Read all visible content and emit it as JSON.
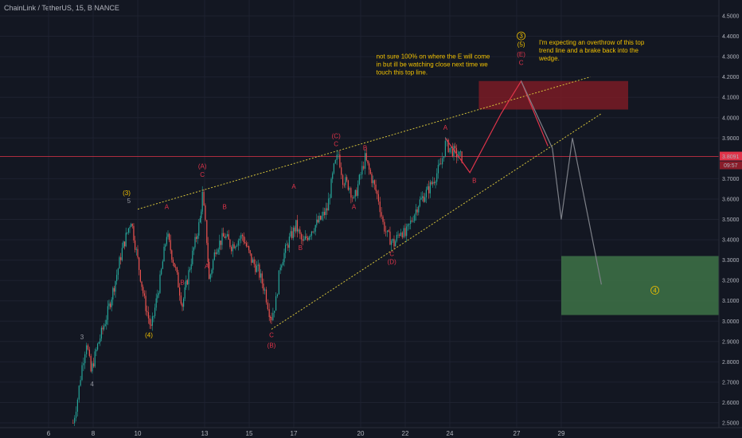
{
  "symbol_title": "ChainLink / TetherUS, 15, BINANCE",
  "colors": {
    "background": "#131722",
    "up": "#26a69a",
    "down": "#ef5350",
    "wave_red": "#e0344a",
    "wave_yellow": "#f0c000",
    "wave_gray": "#9598a1",
    "projection_red": "#e0344a",
    "projection_gray": "#7d8088",
    "resistance_box": "#7a1b24",
    "target_box": "#3c6e45",
    "price_line": "#e0344a"
  },
  "chart_data": {
    "type": "candlestick",
    "ylim": [
      2.5,
      4.5
    ],
    "y_ticks": [
      "4.5000",
      "4.4000",
      "4.3000",
      "4.2000",
      "4.1000",
      "4.0000",
      "3.9000",
      "3.7000",
      "3.6000",
      "3.5000",
      "3.4000",
      "3.3000",
      "3.2000",
      "3.1000",
      "3.0000",
      "2.9000",
      "2.8000",
      "2.7000",
      "2.6000",
      "2.5000"
    ],
    "x_ticks": [
      {
        "label": "6",
        "day": 6
      },
      {
        "label": "8",
        "day": 8
      },
      {
        "label": "10",
        "day": 10
      },
      {
        "label": "13",
        "day": 13
      },
      {
        "label": "15",
        "day": 15
      },
      {
        "label": "17",
        "day": 17
      },
      {
        "label": "20",
        "day": 20
      },
      {
        "label": "22",
        "day": 22
      },
      {
        "label": "24",
        "day": 24
      },
      {
        "label": "27",
        "day": 27
      },
      {
        "label": "29",
        "day": 29
      }
    ],
    "last_price": {
      "value": 3.8091,
      "label": "3.8091",
      "countdown": "09:57"
    },
    "price_path": [
      [
        7.1,
        2.5
      ],
      [
        7.3,
        2.62
      ],
      [
        7.5,
        2.78
      ],
      [
        7.7,
        2.9
      ],
      [
        7.9,
        2.75
      ],
      [
        8.2,
        2.88
      ],
      [
        8.6,
        3.02
      ],
      [
        9.0,
        3.2
      ],
      [
        9.3,
        3.35
      ],
      [
        9.7,
        3.5
      ],
      [
        10.0,
        3.3
      ],
      [
        10.3,
        3.1
      ],
      [
        10.6,
        2.96
      ],
      [
        11.0,
        3.2
      ],
      [
        11.3,
        3.43
      ],
      [
        11.7,
        3.25
      ],
      [
        12.0,
        3.08
      ],
      [
        12.4,
        3.3
      ],
      [
        12.8,
        3.5
      ],
      [
        12.9,
        3.62
      ],
      [
        13.1,
        3.4
      ],
      [
        13.2,
        3.2
      ],
      [
        13.5,
        3.36
      ],
      [
        13.9,
        3.42
      ],
      [
        14.2,
        3.37
      ],
      [
        14.7,
        3.42
      ],
      [
        15.1,
        3.3
      ],
      [
        15.4,
        3.25
      ],
      [
        15.7,
        3.15
      ],
      [
        15.9,
        3.05
      ],
      [
        16.0,
        3.02
      ],
      [
        16.2,
        3.1
      ],
      [
        16.4,
        3.28
      ],
      [
        16.8,
        3.4
      ],
      [
        17.1,
        3.47
      ],
      [
        17.4,
        3.38
      ],
      [
        17.8,
        3.45
      ],
      [
        18.2,
        3.5
      ],
      [
        18.5,
        3.55
      ],
      [
        18.8,
        3.75
      ],
      [
        19.0,
        3.82
      ],
      [
        19.2,
        3.7
      ],
      [
        19.5,
        3.66
      ],
      [
        19.7,
        3.59
      ],
      [
        20.0,
        3.72
      ],
      [
        20.2,
        3.8
      ],
      [
        20.5,
        3.7
      ],
      [
        20.8,
        3.6
      ],
      [
        21.0,
        3.48
      ],
      [
        21.2,
        3.42
      ],
      [
        21.5,
        3.38
      ],
      [
        21.8,
        3.45
      ],
      [
        22.0,
        3.42
      ],
      [
        22.3,
        3.5
      ],
      [
        22.6,
        3.58
      ],
      [
        23.0,
        3.64
      ],
      [
        23.3,
        3.7
      ],
      [
        23.6,
        3.77
      ],
      [
        23.8,
        3.87
      ],
      [
        24.0,
        3.85
      ],
      [
        24.3,
        3.82
      ],
      [
        24.6,
        3.8
      ]
    ],
    "triangle_lines": [
      {
        "name": "upper",
        "from": [
          10.0,
          3.55
        ],
        "to": [
          30.3,
          4.2
        ]
      },
      {
        "name": "lower",
        "from": [
          16.0,
          2.96
        ],
        "to": [
          30.8,
          4.02
        ]
      }
    ],
    "price_line_value": 3.8091,
    "red_projection": [
      [
        23.8,
        3.9
      ],
      [
        24.9,
        3.73
      ],
      [
        26.3,
        4.02
      ],
      [
        27.2,
        4.18
      ],
      [
        28.4,
        3.86
      ]
    ],
    "gray_projection": [
      [
        27.2,
        4.18
      ],
      [
        28.6,
        3.85
      ],
      [
        29.0,
        3.5
      ],
      [
        29.5,
        3.9
      ],
      [
        30.8,
        3.18
      ]
    ],
    "red_zone": {
      "x": [
        25.3,
        32.0
      ],
      "y": [
        4.04,
        4.18
      ]
    },
    "green_zone": {
      "x": [
        29.0,
        37.5
      ],
      "y": [
        3.03,
        3.32
      ]
    },
    "wave_labels": [
      {
        "text": "3",
        "x": 7.5,
        "y": 2.91,
        "color": "gray"
      },
      {
        "text": "4",
        "x": 7.95,
        "y": 2.68,
        "color": "gray"
      },
      {
        "text": "5",
        "x": 9.6,
        "y": 3.58,
        "color": "gray"
      },
      {
        "text": "(3)",
        "x": 9.5,
        "y": 3.62,
        "color": "yellow"
      },
      {
        "text": "(4)",
        "x": 10.5,
        "y": 2.92,
        "color": "yellow"
      },
      {
        "text": "A",
        "x": 11.3,
        "y": 3.55,
        "color": "red"
      },
      {
        "text": "B",
        "x": 12.0,
        "y": 3.18,
        "color": "red"
      },
      {
        "text": "C",
        "x": 12.9,
        "y": 3.71,
        "color": "red"
      },
      {
        "text": "(A)",
        "x": 12.9,
        "y": 3.75,
        "color": "red"
      },
      {
        "text": "A",
        "x": 13.1,
        "y": 3.26,
        "color": "red"
      },
      {
        "text": "B",
        "x": 13.9,
        "y": 3.55,
        "color": "red"
      },
      {
        "text": "A",
        "x": 17.0,
        "y": 3.65,
        "color": "red"
      },
      {
        "text": "B",
        "x": 17.3,
        "y": 3.35,
        "color": "red"
      },
      {
        "text": "C",
        "x": 16.0,
        "y": 2.92,
        "color": "red"
      },
      {
        "text": "(B)",
        "x": 16.0,
        "y": 2.87,
        "color": "red"
      },
      {
        "text": "C",
        "x": 18.9,
        "y": 3.86,
        "color": "red"
      },
      {
        "text": "(C)",
        "x": 18.9,
        "y": 3.9,
        "color": "red"
      },
      {
        "text": "B",
        "x": 20.2,
        "y": 3.84,
        "color": "red"
      },
      {
        "text": "A",
        "x": 19.7,
        "y": 3.55,
        "color": "red"
      },
      {
        "text": "C",
        "x": 21.4,
        "y": 3.32,
        "color": "red"
      },
      {
        "text": "(D)",
        "x": 21.4,
        "y": 3.28,
        "color": "red"
      },
      {
        "text": "A",
        "x": 23.8,
        "y": 3.94,
        "color": "red"
      },
      {
        "text": "B",
        "x": 25.1,
        "y": 3.68,
        "color": "red"
      },
      {
        "text": "C",
        "x": 27.2,
        "y": 4.26,
        "color": "red"
      },
      {
        "text": "(E)",
        "x": 27.2,
        "y": 4.3,
        "color": "red"
      },
      {
        "text": "(5)",
        "x": 27.2,
        "y": 4.35,
        "color": "yellow"
      },
      {
        "text": "3",
        "x": 27.2,
        "y": 4.39,
        "color": "yellow",
        "circled": true
      },
      {
        "text": "4",
        "x": 33.2,
        "y": 3.14,
        "color": "yellow",
        "circled": true
      }
    ],
    "annotations": [
      {
        "name": "note-e-wave",
        "lines": [
          "not sure 100% on where the E will come",
          "in but ill be watching close next time we",
          "touch this top line."
        ],
        "x": 20.7,
        "y": 4.29
      },
      {
        "name": "note-overthrow",
        "lines": [
          "I'm expecting an overthrow of this top",
          "trend line and a brake back into the",
          "wedge."
        ],
        "x": 28.0,
        "y": 4.36
      }
    ]
  }
}
